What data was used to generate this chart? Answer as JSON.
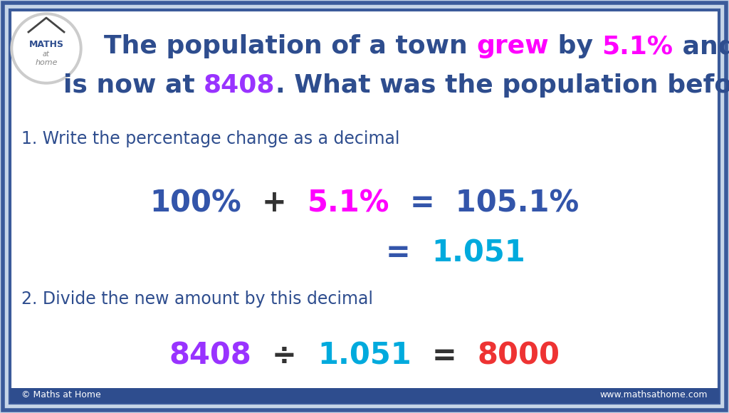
{
  "bg_color": "#c5d5e8",
  "box_color": "#ffffff",
  "border_color_outer": "#3a5a9a",
  "border_color_inner": "#3a5a9a",
  "title_line1_parts": [
    {
      "text": "The population of a town ",
      "color": "#2e4d8e"
    },
    {
      "text": "grew",
      "color": "#ff00ff"
    },
    {
      "text": " by ",
      "color": "#2e4d8e"
    },
    {
      "text": "5.1%",
      "color": "#ff00ff"
    },
    {
      "text": " and",
      "color": "#2e4d8e"
    }
  ],
  "title_line2_parts": [
    {
      "text": "is now at ",
      "color": "#2e4d8e"
    },
    {
      "text": "8408",
      "color": "#9933ff"
    },
    {
      "text": ". What was the population before?",
      "color": "#2e4d8e"
    }
  ],
  "step1_text": "1. Write the percentage change as a decimal",
  "step1_text_color": "#2e4d8e",
  "eq1_parts": [
    {
      "text": "100%",
      "color": "#3355aa"
    },
    {
      "text": "  +  ",
      "color": "#333333"
    },
    {
      "text": "5.1%",
      "color": "#ff00ff"
    },
    {
      "text": "  =  105.1%",
      "color": "#3355aa"
    }
  ],
  "eq2_parts": [
    {
      "text": "=  ",
      "color": "#3355aa"
    },
    {
      "text": "1.051",
      "color": "#00aadd"
    }
  ],
  "step2_text": "2. Divide the new amount by this decimal",
  "step2_text_color": "#2e4d8e",
  "eq3_parts": [
    {
      "text": "8408",
      "color": "#9933ff"
    },
    {
      "text": "  ÷  ",
      "color": "#333333"
    },
    {
      "text": "1.051",
      "color": "#00aadd"
    },
    {
      "text": "  =  ",
      "color": "#333333"
    },
    {
      "text": "8000",
      "color": "#ee3333"
    }
  ],
  "footer_left": "© Maths at Home",
  "footer_right": "www.mathsathome.com",
  "footer_bg": "#2e4d8e",
  "footer_text_color": "#ffffff"
}
